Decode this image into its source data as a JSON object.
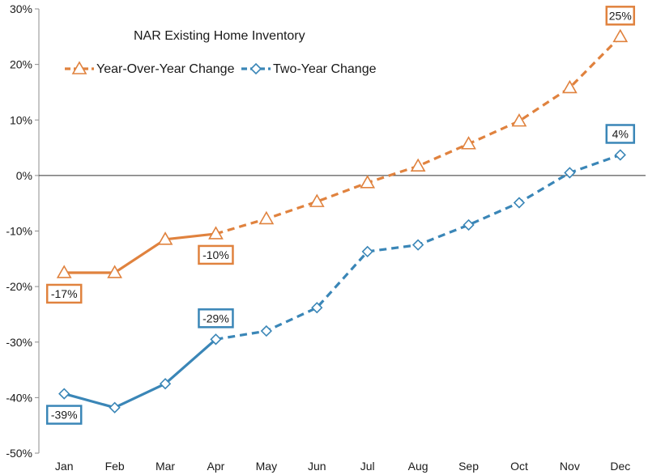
{
  "chart_data": {
    "type": "line",
    "title": "NAR Existing Home Inventory",
    "categories": [
      "Jan",
      "Feb",
      "Mar",
      "Apr",
      "May",
      "Jun",
      "Jul",
      "Aug",
      "Sep",
      "Oct",
      "Nov",
      "Dec"
    ],
    "ylim": [
      -50,
      30
    ],
    "yticks": [
      30,
      20,
      10,
      0,
      -10,
      -20,
      -30,
      -40,
      -50
    ],
    "ytick_labels": [
      "30%",
      "20%",
      "10%",
      "0%",
      "-10%",
      "-20%",
      "-30%",
      "-40%",
      "-50%"
    ],
    "xlabel": "",
    "ylabel": "",
    "grid": false,
    "legend_position": "top-left",
    "series": [
      {
        "name": "Year-Over-Year Change",
        "color": "#e0823e",
        "marker": "triangle",
        "values": [
          -17.5,
          -17.5,
          -11.5,
          -10.5,
          -7.8,
          -4.7,
          -1.3,
          1.7,
          5.7,
          9.8,
          15.8,
          25
        ],
        "solid_through_index": 3,
        "annotations": [
          {
            "index": 0,
            "label": "-17%",
            "position": "below"
          },
          {
            "index": 3,
            "label": "-10%",
            "position": "below"
          },
          {
            "index": 11,
            "label": "25%",
            "position": "above"
          }
        ]
      },
      {
        "name": "Two-Year Change",
        "color": "#3a86b7",
        "marker": "diamond",
        "values": [
          -39.3,
          -41.8,
          -37.5,
          -29.5,
          -28,
          -23.8,
          -13.7,
          -12.5,
          -8.9,
          -4.9,
          0.5,
          3.7
        ],
        "solid_through_index": 3,
        "annotations": [
          {
            "index": 0,
            "label": "-39%",
            "position": "below"
          },
          {
            "index": 3,
            "label": "-29%",
            "position": "above"
          },
          {
            "index": 11,
            "label": "4%",
            "position": "above"
          }
        ]
      }
    ]
  }
}
